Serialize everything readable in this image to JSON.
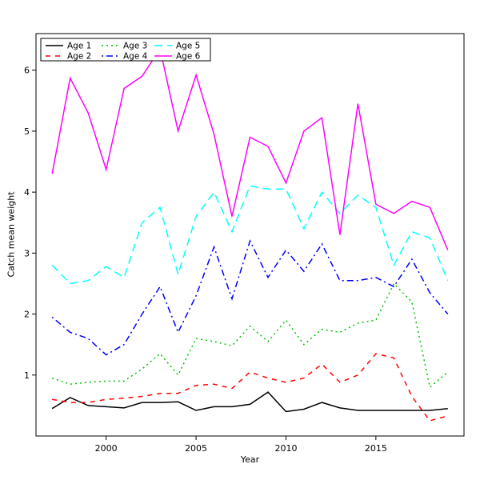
{
  "chart_data": {
    "type": "line",
    "title": "",
    "xlabel": "Year",
    "ylabel": "Catch mean weight",
    "grid": false,
    "legend_position": "top-left",
    "xlim": [
      1996.1,
      1999.9
    ],
    "x_range": [
      1996.1,
      2019.9
    ],
    "ylim": [
      0,
      6.6
    ],
    "xticks": [
      2000,
      2005,
      2010,
      2015
    ],
    "yticks": [
      1,
      2,
      3,
      4,
      5,
      6
    ],
    "x": [
      1997,
      1998,
      1999,
      2000,
      2001,
      2002,
      2003,
      2004,
      2005,
      2006,
      2007,
      2008,
      2009,
      2010,
      2011,
      2012,
      2013,
      2014,
      2015,
      2016,
      2017,
      2018,
      2019
    ],
    "series": [
      {
        "name": "Age 1",
        "color": "#000000",
        "linestyle": "solid",
        "values": [
          0.45,
          0.63,
          0.5,
          0.48,
          0.46,
          0.55,
          0.55,
          0.56,
          0.42,
          0.48,
          0.48,
          0.52,
          0.72,
          0.4,
          0.44,
          0.55,
          0.46,
          0.42,
          0.42,
          0.42,
          0.42,
          0.42,
          0.45
        ]
      },
      {
        "name": "Age 2",
        "color": "#ff0000",
        "linestyle": "dashed",
        "values": [
          0.6,
          0.55,
          0.55,
          0.6,
          0.62,
          0.65,
          0.7,
          0.7,
          0.83,
          0.85,
          0.78,
          1.05,
          0.95,
          0.88,
          0.95,
          1.18,
          0.88,
          1.0,
          1.35,
          1.28,
          0.65,
          0.25,
          0.33
        ]
      },
      {
        "name": "Age 3",
        "color": "#00c000",
        "linestyle": "dotted",
        "values": [
          0.95,
          0.85,
          0.88,
          0.9,
          0.9,
          1.1,
          1.35,
          1.0,
          1.6,
          1.55,
          1.48,
          1.8,
          1.55,
          1.9,
          1.5,
          1.75,
          1.7,
          1.85,
          1.9,
          2.5,
          2.2,
          0.8,
          1.05
        ]
      },
      {
        "name": "Age 4",
        "color": "#0000ff",
        "linestyle": "dashdot",
        "values": [
          1.95,
          1.7,
          1.6,
          1.33,
          1.5,
          2.0,
          2.45,
          1.7,
          2.3,
          3.1,
          2.25,
          3.2,
          2.6,
          3.05,
          2.7,
          3.15,
          2.55,
          2.55,
          2.6,
          2.45,
          2.9,
          2.35,
          2.0
        ]
      },
      {
        "name": "Age 5",
        "color": "#00ffff",
        "linestyle": "longdash",
        "values": [
          2.8,
          2.5,
          2.55,
          2.78,
          2.6,
          3.5,
          3.75,
          2.65,
          3.6,
          4.0,
          3.35,
          4.1,
          4.05,
          4.05,
          3.4,
          4.0,
          3.65,
          3.95,
          3.75,
          2.8,
          3.35,
          3.25,
          2.55
        ]
      },
      {
        "name": "Age 6",
        "color": "#ff00ff",
        "linestyle": "solid",
        "values": [
          4.3,
          5.87,
          5.3,
          4.37,
          5.7,
          5.9,
          6.35,
          5.0,
          5.92,
          4.95,
          3.6,
          4.9,
          4.75,
          4.15,
          5.0,
          5.22,
          3.3,
          5.45,
          3.8,
          3.65,
          3.85,
          3.75,
          3.05
        ]
      }
    ]
  }
}
